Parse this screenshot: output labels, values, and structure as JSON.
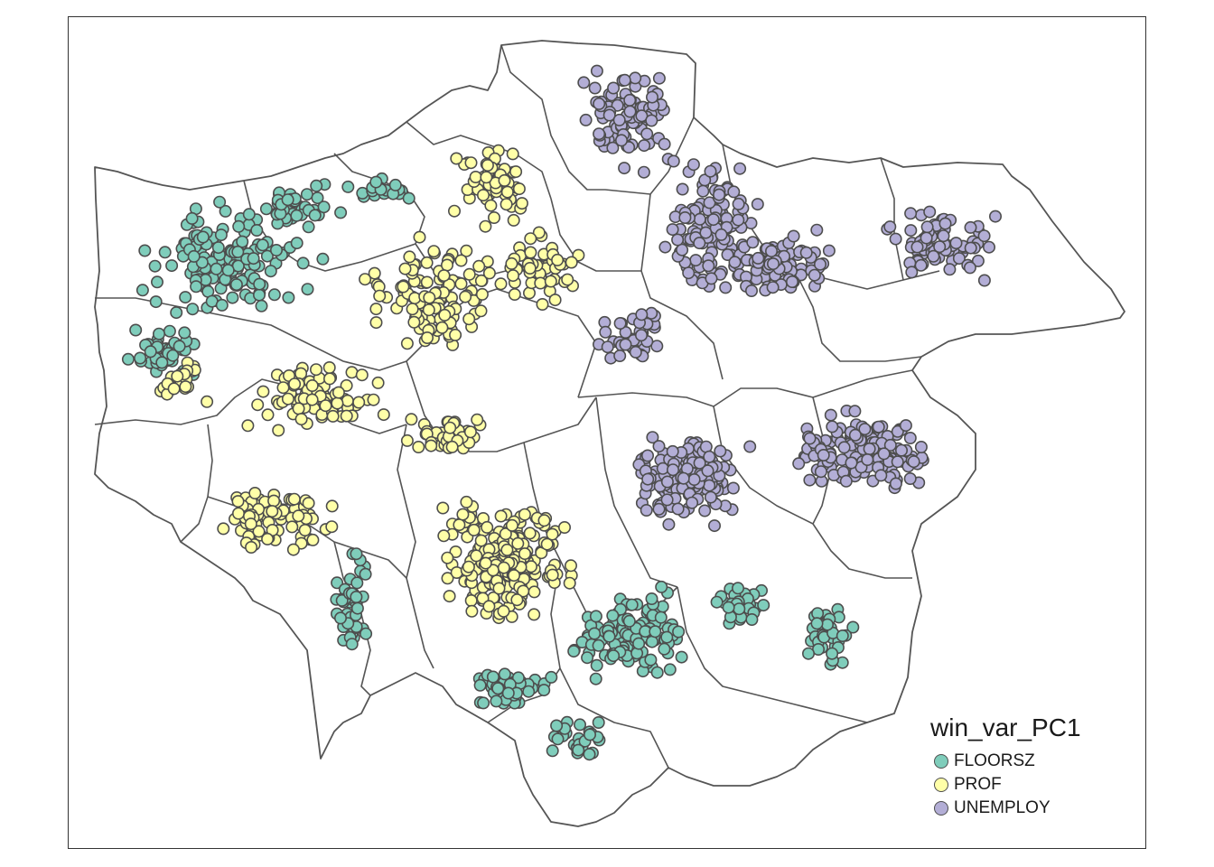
{
  "legend": {
    "title": "win_var_PC1",
    "items": [
      {
        "label": "FLOORSZ",
        "color": "#7fcdbb"
      },
      {
        "label": "PROF",
        "color": "#ffffa8"
      },
      {
        "label": "UNEMPLOY",
        "color": "#b3aed6"
      }
    ]
  },
  "map": {
    "type": "point map of boroughs",
    "classes": [
      "FLOORSZ",
      "PROF",
      "UNEMPLOY"
    ],
    "border_color": "#555555"
  }
}
